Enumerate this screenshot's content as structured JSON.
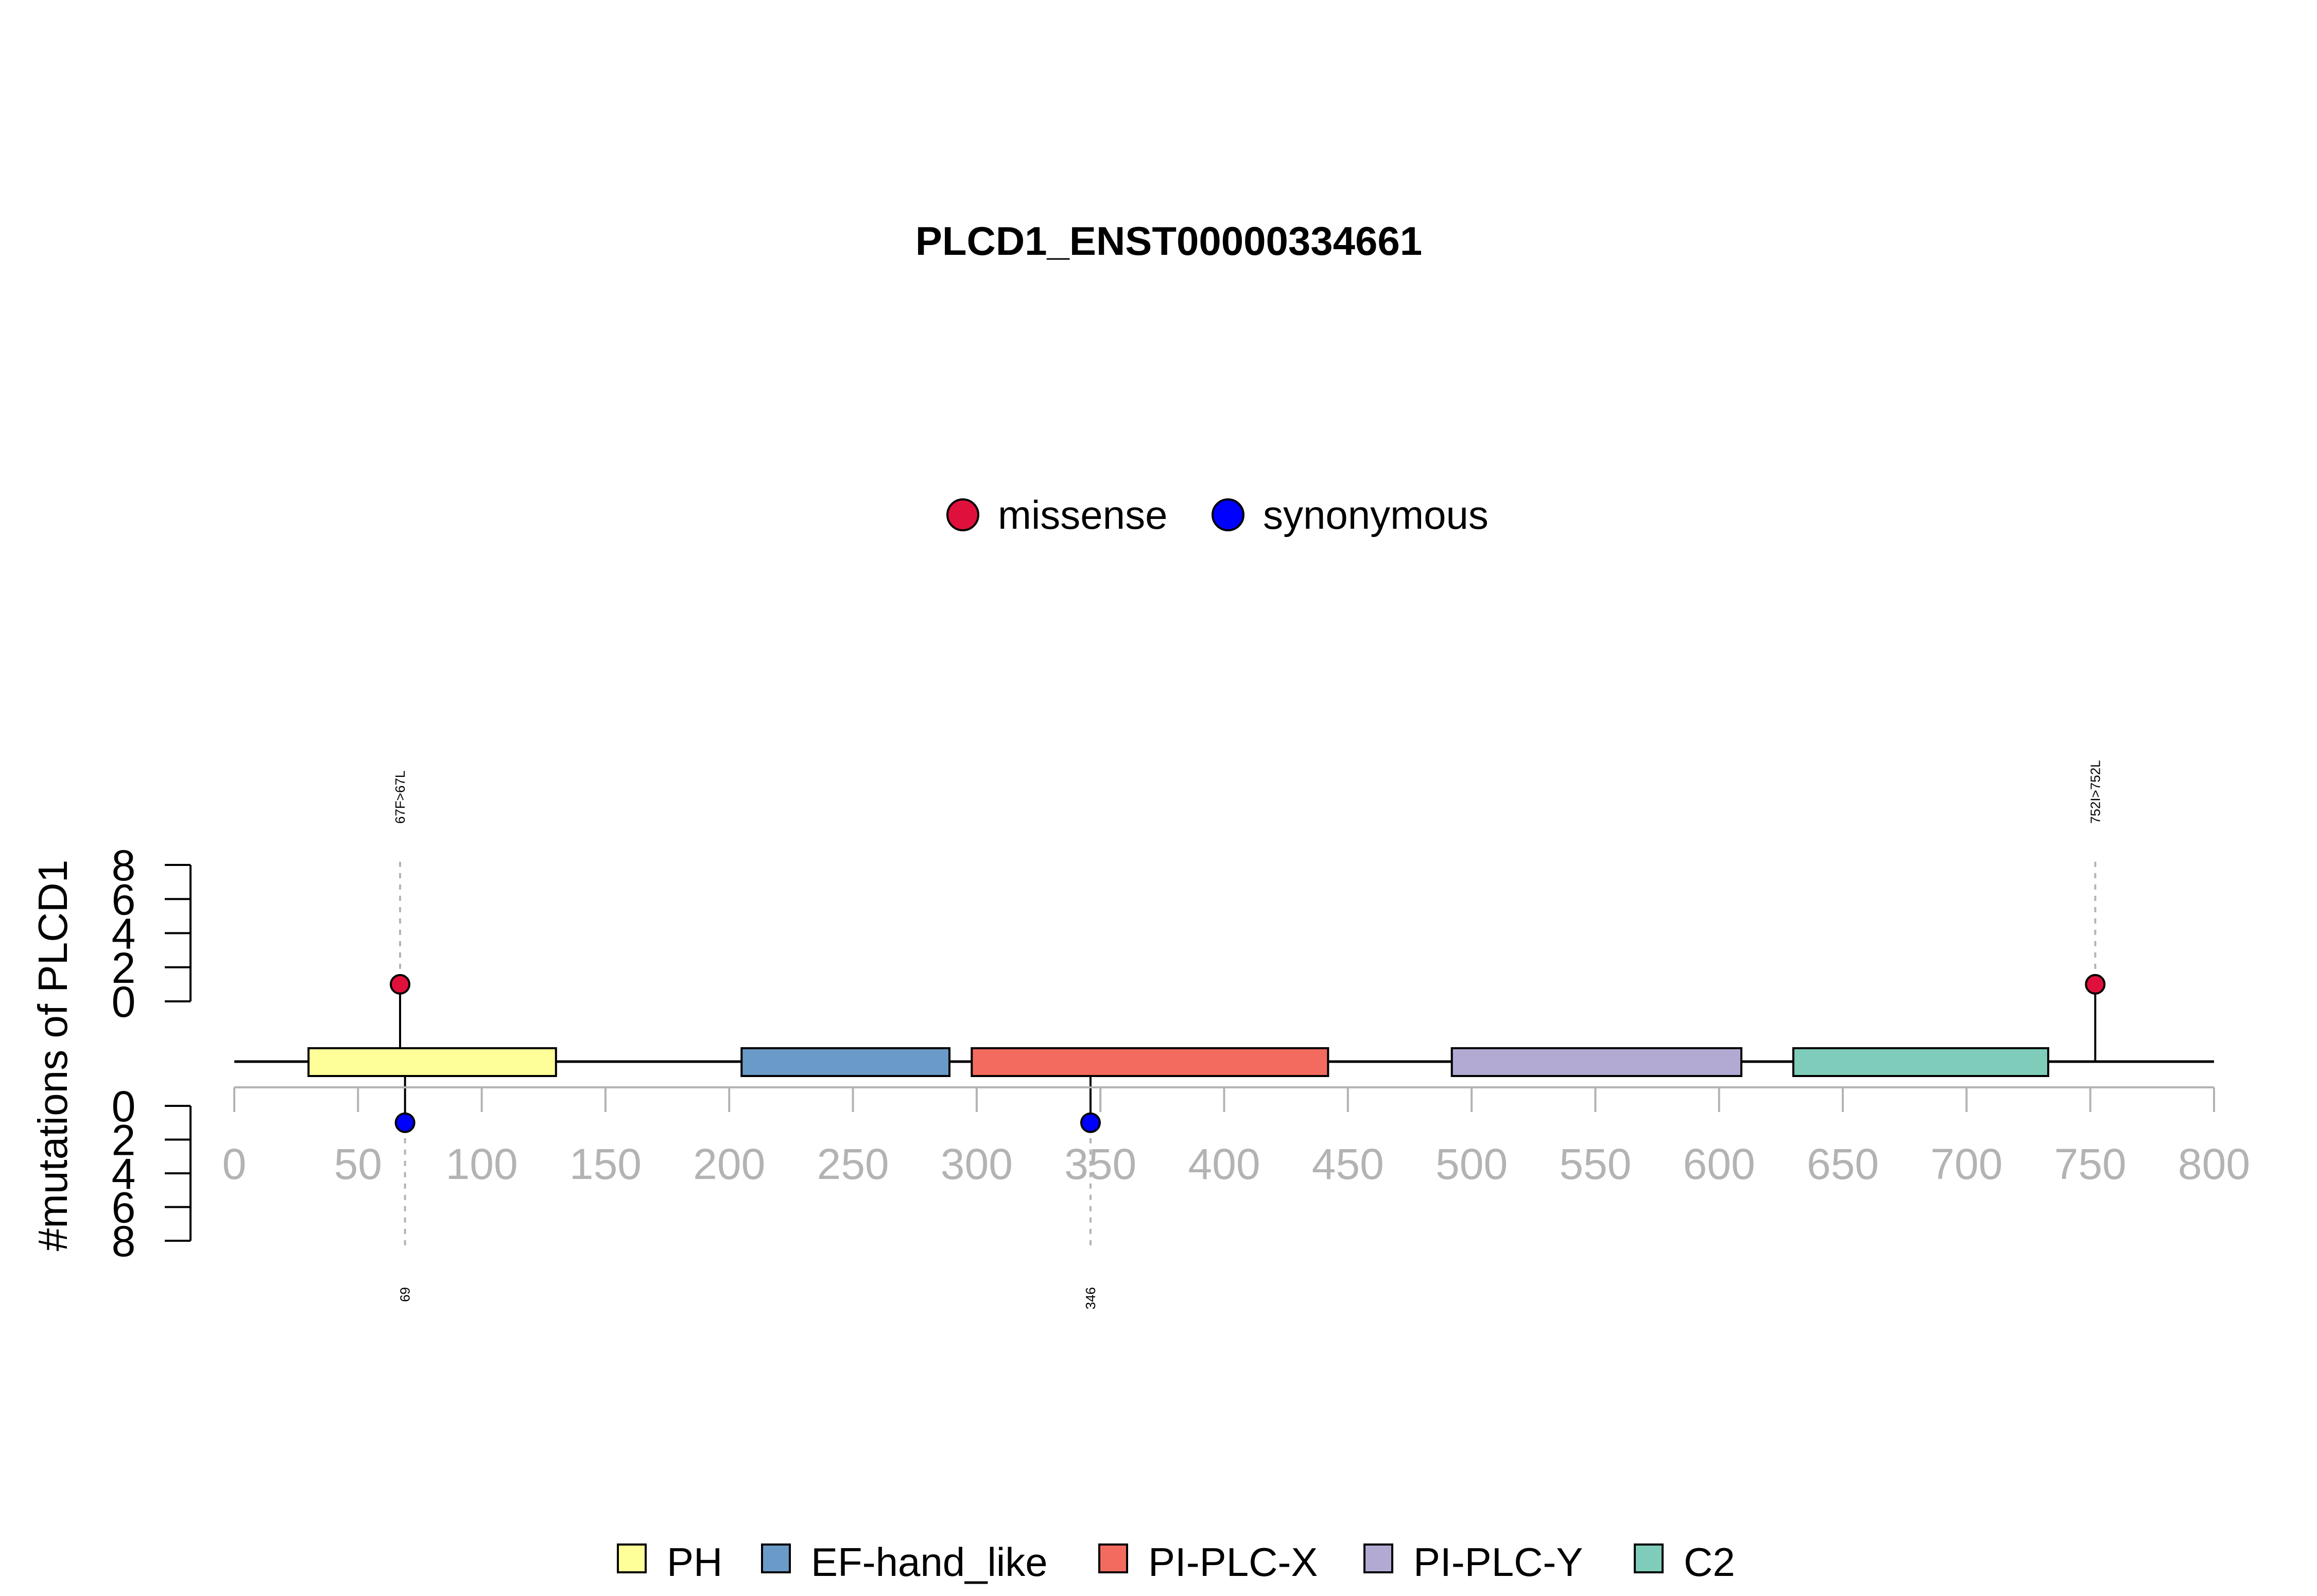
{
  "chart_data": {
    "type": "lollipop",
    "title": "PLCD1_ENST00000334661",
    "ylabel": "#mutations of PLCD1",
    "xlim": [
      0,
      800
    ],
    "x_ticks": [
      0,
      50,
      100,
      150,
      200,
      250,
      300,
      350,
      400,
      450,
      500,
      550,
      600,
      650,
      700,
      750,
      800
    ],
    "y_ticks": [
      0,
      2,
      4,
      6,
      8
    ],
    "ylim": [
      0,
      8
    ],
    "mutation_legend": [
      {
        "name": "missense",
        "color": "#e0103c"
      },
      {
        "name": "synonymous",
        "color": "#0000ff"
      }
    ],
    "domain_legend": [
      {
        "name": "PH",
        "color": "#ffff99"
      },
      {
        "name": "EF-hand_like",
        "color": "#6a9bc8"
      },
      {
        "name": "PI-PLC-X",
        "color": "#f36b5f"
      },
      {
        "name": "PI-PLC-Y",
        "color": "#b3aad4"
      },
      {
        "name": "C2",
        "color": "#7fccbb"
      }
    ],
    "domains": [
      {
        "name": "PH",
        "start": 30,
        "end": 130
      },
      {
        "name": "EF-hand_like",
        "start": 205,
        "end": 289
      },
      {
        "name": "PI-PLC-X",
        "start": 298,
        "end": 442
      },
      {
        "name": "PI-PLC-Y",
        "start": 492,
        "end": 609
      },
      {
        "name": "C2",
        "start": 630,
        "end": 733
      }
    ],
    "mutations": [
      {
        "position": 67,
        "count": 1,
        "type": "missense",
        "label": "67F>67L",
        "side": "top"
      },
      {
        "position": 752,
        "count": 1,
        "type": "missense",
        "label": "752I>752L",
        "side": "top"
      },
      {
        "position": 69,
        "count": 1,
        "type": "synonymous",
        "label": "69",
        "side": "bottom"
      },
      {
        "position": 346,
        "count": 1,
        "type": "synonymous",
        "label": "346",
        "side": "bottom"
      }
    ]
  }
}
